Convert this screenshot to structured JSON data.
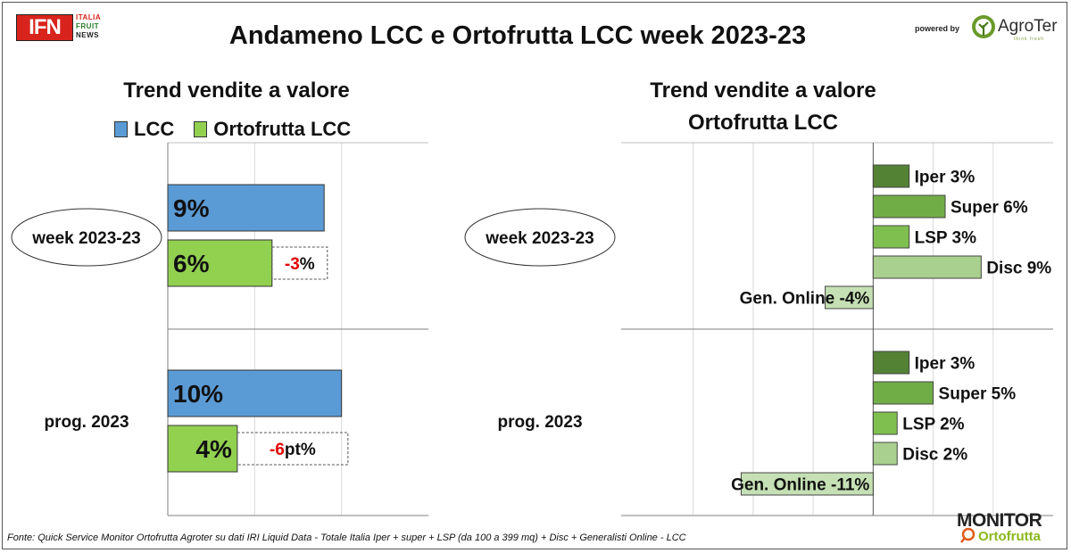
{
  "header": {
    "logo": {
      "mark": "IFN",
      "lines": [
        "ITALIA",
        "FRUIT",
        "NEWS"
      ]
    },
    "title": "Andameno LCC e Ortofrutta LCC week 2023-23",
    "powered_by": "powered by",
    "sponsor": "AgroTer",
    "sponsor_tagline": "think fresh"
  },
  "footer": {
    "source": "Fonte: Quick Service Monitor Ortofrutta Agroter su dati IRI Liquid Data - Totale Italia Iper + super + LSP (da 100 a 399 mq) + Disc + Generalisti Online - LCC",
    "brand_top": "MONITOR",
    "brand_bottom": "Ortofrutta"
  },
  "colors": {
    "lcc": "#5b9bd5",
    "ortofrutta": "#92d050",
    "negative_text": "#e00000",
    "iper": "#548235",
    "super": "#70ad47",
    "lsp": "#7fbf4f",
    "disc": "#a9d08e",
    "online": "#c5e0b4"
  },
  "chart_data": [
    {
      "type": "bar",
      "orientation": "horizontal",
      "title": "Trend vendite a valore",
      "legend": [
        "LCC",
        "Ortofrutta LCC"
      ],
      "legend_position": "top",
      "grid": true,
      "xlim": [
        0,
        15
      ],
      "groups": [
        {
          "label": "week 2023-23",
          "label_style": "ellipse",
          "bars": [
            {
              "series": "LCC",
              "value": 9,
              "label": "9%"
            },
            {
              "series": "Ortofrutta LCC",
              "value": 6,
              "label": "6%"
            }
          ],
          "diff": {
            "value": -3,
            "number": "-3",
            "suffix": "%"
          }
        },
        {
          "label": "prog. 2023",
          "label_style": "plain",
          "bars": [
            {
              "series": "LCC",
              "value": 10,
              "label": "10%"
            },
            {
              "series": "Ortofrutta LCC",
              "value": 4,
              "label": "4%"
            }
          ],
          "diff": {
            "value": -6,
            "number": "-6",
            "suffix": "pt%"
          }
        }
      ]
    },
    {
      "type": "bar",
      "orientation": "horizontal",
      "title": "Trend vendite a valore Ortofrutta LCC",
      "title_lines": [
        "Trend vendite a valore",
        "Ortofrutta LCC"
      ],
      "grid": true,
      "xlim": [
        -21,
        15
      ],
      "groups": [
        {
          "label": "week 2023-23",
          "label_style": "ellipse",
          "bars": [
            {
              "category": "Iper",
              "value": 3,
              "label": "Iper 3%"
            },
            {
              "category": "Super",
              "value": 6,
              "label": "Super 6%"
            },
            {
              "category": "LSP",
              "value": 3,
              "label": "LSP 3%"
            },
            {
              "category": "Disc",
              "value": 9,
              "label": "Disc 9%"
            },
            {
              "category": "Gen. Online",
              "value": -4,
              "label": "Gen. Online -4%"
            }
          ]
        },
        {
          "label": "prog. 2023",
          "label_style": "plain",
          "bars": [
            {
              "category": "Iper",
              "value": 3,
              "label": "Iper 3%"
            },
            {
              "category": "Super",
              "value": 5,
              "label": "Super 5%"
            },
            {
              "category": "LSP",
              "value": 2,
              "label": "LSP 2%"
            },
            {
              "category": "Disc",
              "value": 2,
              "label": "Disc 2%"
            },
            {
              "category": "Gen. Online",
              "value": -11,
              "label": "Gen. Online -11%"
            }
          ]
        }
      ]
    }
  ]
}
